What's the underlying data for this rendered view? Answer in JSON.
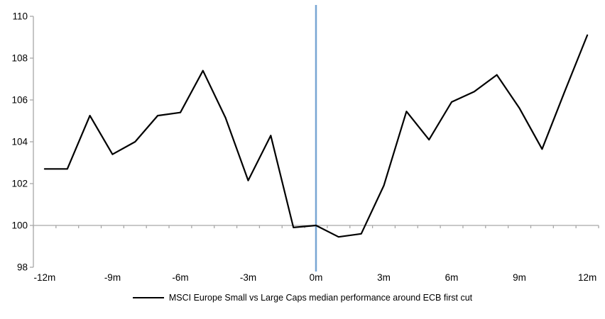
{
  "chart_data": {
    "type": "line",
    "title": "",
    "xlabel": "",
    "ylabel": "",
    "x": [
      -12,
      -11,
      -10,
      -9,
      -8,
      -7,
      -6,
      -5,
      -4,
      -3,
      -2,
      -1,
      0,
      1,
      2,
      3,
      4,
      5,
      6,
      7,
      8,
      9,
      10,
      11,
      12
    ],
    "series": [
      {
        "name": "MSCI Europe Small vs Large Caps median performance around ECB first cut",
        "color": "#000000",
        "values": [
          102.7,
          102.7,
          105.25,
          103.4,
          104.0,
          105.25,
          105.4,
          107.4,
          105.15,
          102.15,
          104.3,
          99.9,
          100.0,
          99.45,
          99.6,
          101.9,
          105.45,
          104.1,
          105.9,
          106.4,
          107.2,
          105.6,
          103.65,
          106.4,
          109.1
        ]
      }
    ],
    "ylim": [
      98,
      110
    ],
    "y_ticks": [
      98,
      100,
      102,
      104,
      106,
      108,
      110
    ],
    "y_tick_labels": [
      "98",
      "100",
      "102",
      "104",
      "106",
      "108",
      "110"
    ],
    "x_tick_positions": [
      -12,
      -9,
      -6,
      -3,
      0,
      3,
      6,
      9,
      12
    ],
    "x_tick_labels": [
      "-12m",
      "-9m",
      "-6m",
      "-3m",
      "0m",
      "3m",
      "6m",
      "9m",
      "12m"
    ],
    "grid": false,
    "legend_position": "bottom",
    "reference_lines": {
      "vertical_event_line": {
        "x": 0,
        "color": "#78A6D3"
      },
      "horizontal_baseline": {
        "y": 100,
        "color": "#A8A8A8"
      }
    },
    "axis_color": "#A8A8A8"
  }
}
